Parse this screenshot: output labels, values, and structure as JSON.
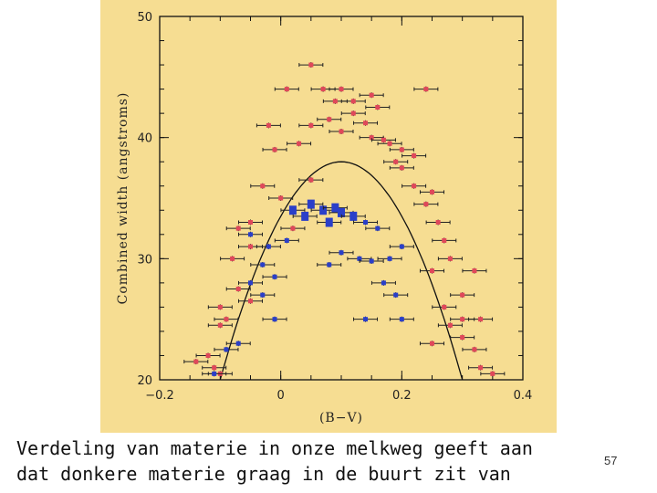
{
  "slide": {
    "caption_lines": [
      "Verdeling van materie in onze melkweg geeft aan",
      "dat donkere materie graag in de buurt zit van"
    ],
    "page_number": "57"
  },
  "colors": {
    "background": "#f6dd92",
    "red_points": "#e0485a",
    "blue_points": "#2a3fc9",
    "curve": "#111111"
  },
  "chart_data": {
    "type": "scatter",
    "title": "",
    "xlabel": "(B−V)",
    "ylabel": "Combined width (angstroms)",
    "xlim": [
      -0.2,
      0.4
    ],
    "ylim": [
      20,
      50
    ],
    "x_ticks": [
      "−0.2",
      "0",
      "0.2",
      "0.4"
    ],
    "y_ticks": [
      "20",
      "30",
      "40",
      "50"
    ],
    "grid": false,
    "error_bars": true,
    "curve": {
      "shape": "parabola",
      "peak_x": 0.1,
      "peak_y": 38.0,
      "points": [
        [
          -0.1,
          20.0
        ],
        [
          0.0,
          34.0
        ],
        [
          0.05,
          37.0
        ],
        [
          0.1,
          38.0
        ],
        [
          0.15,
          37.0
        ],
        [
          0.2,
          34.0
        ],
        [
          0.3,
          20.0
        ]
      ]
    },
    "series": [
      {
        "color": "red",
        "points": [
          [
            0.05,
            46.0
          ],
          [
            0.1,
            44.0
          ],
          [
            0.15,
            43.5
          ],
          [
            0.12,
            42.0
          ],
          [
            0.08,
            41.5
          ],
          [
            0.05,
            41.0
          ],
          [
            0.15,
            40.0
          ],
          [
            0.18,
            39.5
          ],
          [
            0.2,
            39.0
          ],
          [
            0.22,
            38.5
          ],
          [
            0.17,
            39.8
          ],
          [
            0.14,
            41.2
          ],
          [
            0.03,
            39.5
          ],
          [
            -0.01,
            39.0
          ],
          [
            -0.02,
            41.0
          ],
          [
            0.1,
            40.5
          ],
          [
            0.2,
            37.5
          ],
          [
            0.22,
            36.0
          ],
          [
            0.25,
            35.5
          ],
          [
            0.24,
            34.5
          ],
          [
            0.26,
            33.0
          ],
          [
            0.27,
            31.5
          ],
          [
            0.28,
            30.0
          ],
          [
            0.25,
            29.0
          ],
          [
            0.32,
            29.0
          ],
          [
            0.3,
            27.0
          ],
          [
            0.27,
            26.0
          ],
          [
            0.3,
            25.0
          ],
          [
            0.33,
            25.0
          ],
          [
            0.3,
            23.5
          ],
          [
            0.32,
            22.5
          ],
          [
            0.33,
            21.0
          ],
          [
            0.35,
            20.5
          ],
          [
            0.25,
            23.0
          ],
          [
            0.28,
            24.5
          ],
          [
            0.24,
            44.0
          ],
          [
            0.01,
            44.0
          ],
          [
            0.07,
            44.0
          ],
          [
            0.12,
            43.0
          ],
          [
            0.16,
            42.5
          ],
          [
            0.09,
            43.0
          ],
          [
            0.19,
            38.0
          ],
          [
            -0.03,
            36.0
          ],
          [
            0.0,
            35.0
          ],
          [
            -0.05,
            33.0
          ],
          [
            -0.07,
            32.5
          ],
          [
            -0.05,
            31.0
          ],
          [
            -0.08,
            30.0
          ],
          [
            -0.1,
            26.0
          ],
          [
            -0.07,
            27.5
          ],
          [
            -0.05,
            26.5
          ],
          [
            -0.09,
            25.0
          ],
          [
            -0.1,
            24.5
          ],
          [
            -0.12,
            22.0
          ],
          [
            -0.14,
            21.5
          ],
          [
            -0.11,
            21.0
          ],
          [
            -0.1,
            20.5
          ],
          [
            0.02,
            32.5
          ],
          [
            0.05,
            36.5
          ]
        ]
      },
      {
        "color": "blue",
        "points": [
          [
            0.02,
            34.0
          ],
          [
            0.05,
            34.5
          ],
          [
            0.07,
            34.0
          ],
          [
            0.09,
            34.2
          ],
          [
            0.1,
            33.8
          ],
          [
            0.04,
            33.5
          ],
          [
            0.08,
            33.0
          ],
          [
            0.12,
            33.5
          ],
          [
            0.14,
            33.0
          ],
          [
            0.16,
            32.5
          ],
          [
            0.1,
            30.5
          ],
          [
            0.13,
            30.0
          ],
          [
            0.15,
            29.8
          ],
          [
            0.18,
            30.0
          ],
          [
            0.08,
            29.5
          ],
          [
            0.17,
            28.0
          ],
          [
            0.19,
            27.0
          ],
          [
            -0.02,
            31.0
          ],
          [
            -0.05,
            32.0
          ],
          [
            -0.03,
            29.5
          ],
          [
            -0.01,
            28.5
          ],
          [
            -0.05,
            28.0
          ],
          [
            -0.03,
            27.0
          ],
          [
            -0.01,
            25.0
          ],
          [
            0.14,
            25.0
          ],
          [
            0.2,
            25.0
          ],
          [
            -0.07,
            23.0
          ],
          [
            -0.09,
            22.5
          ],
          [
            -0.11,
            20.5
          ],
          [
            0.01,
            31.5
          ],
          [
            0.2,
            31.0
          ]
        ]
      }
    ]
  }
}
